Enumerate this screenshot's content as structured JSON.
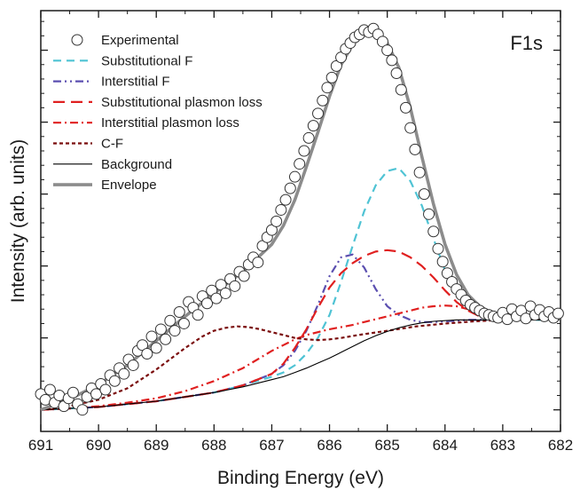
{
  "chart_data": {
    "type": "line",
    "title": "",
    "panel_label": "F1s",
    "xlabel": "Binding Energy (eV)",
    "ylabel": "Intensity (arb. units)",
    "xlim": [
      691,
      682
    ],
    "x_reversed": true,
    "ylim": [
      -0.3,
      5.55
    ],
    "y_tick_labels_shown": false,
    "x_ticks": [
      691,
      690,
      689,
      688,
      687,
      686,
      685,
      684,
      683,
      682
    ],
    "x_tick_labels": [
      "691",
      "690",
      "689",
      "688",
      "687",
      "686",
      "685",
      "684",
      "683",
      "682"
    ],
    "y_ticks": [
      0,
      1,
      2,
      3,
      4,
      5
    ],
    "grid": false,
    "legend_position": "top-left",
    "colors": {
      "experimental": "#333333",
      "substitutional_f": "#4fc3d4",
      "interstitial_f": "#5b4fb0",
      "substitutional_plasmon": "#e02020",
      "interstitial_plasmon": "#e02020",
      "c_f": "#7a0c0c",
      "background": "#000000",
      "envelope": "#8c8c8c"
    },
    "series": [
      {
        "name": "Experimental",
        "style": "open-circles",
        "x": [
          691.0,
          690.92,
          690.84,
          690.76,
          690.68,
          690.6,
          690.52,
          690.44,
          690.36,
          690.28,
          690.2,
          690.12,
          690.04,
          689.96,
          689.88,
          689.8,
          689.72,
          689.64,
          689.56,
          689.48,
          689.4,
          689.32,
          689.24,
          689.16,
          689.08,
          689.0,
          688.92,
          688.84,
          688.76,
          688.68,
          688.6,
          688.52,
          688.44,
          688.36,
          688.28,
          688.2,
          688.12,
          688.04,
          687.96,
          687.88,
          687.8,
          687.72,
          687.64,
          687.56,
          687.48,
          687.4,
          687.32,
          687.24,
          687.16,
          687.08,
          687.0,
          686.92,
          686.84,
          686.76,
          686.68,
          686.6,
          686.52,
          686.44,
          686.36,
          686.28,
          686.2,
          686.12,
          686.04,
          685.96,
          685.88,
          685.8,
          685.72,
          685.64,
          685.56,
          685.48,
          685.4,
          685.32,
          685.24,
          685.16,
          685.08,
          685.0,
          684.92,
          684.84,
          684.76,
          684.68,
          684.6,
          684.52,
          684.44,
          684.36,
          684.28,
          684.2,
          684.12,
          684.04,
          683.96,
          683.88,
          683.8,
          683.72,
          683.64,
          683.56,
          683.48,
          683.4,
          683.32,
          683.24,
          683.16,
          683.08,
          683.0,
          682.92,
          682.84,
          682.76,
          682.68,
          682.6,
          682.52,
          682.44,
          682.36,
          682.28,
          682.2,
          682.12,
          682.04
        ],
        "y": [
          0.22,
          0.14,
          0.28,
          0.1,
          0.2,
          0.05,
          0.16,
          0.24,
          0.08,
          0.0,
          0.18,
          0.3,
          0.22,
          0.36,
          0.28,
          0.48,
          0.4,
          0.58,
          0.5,
          0.7,
          0.62,
          0.82,
          0.9,
          0.78,
          1.02,
          0.86,
          1.12,
          0.98,
          1.24,
          1.1,
          1.36,
          1.2,
          1.5,
          1.42,
          1.32,
          1.58,
          1.48,
          1.66,
          1.55,
          1.74,
          1.62,
          1.82,
          1.72,
          1.92,
          1.86,
          2.02,
          2.12,
          2.05,
          2.28,
          2.4,
          2.5,
          2.62,
          2.78,
          2.92,
          3.08,
          3.24,
          3.42,
          3.6,
          3.78,
          3.95,
          4.12,
          4.3,
          4.48,
          4.62,
          4.78,
          4.9,
          5.02,
          5.1,
          5.18,
          5.22,
          5.28,
          5.25,
          5.3,
          5.22,
          5.12,
          5.0,
          4.86,
          4.68,
          4.45,
          4.2,
          3.92,
          3.62,
          3.3,
          3.0,
          2.72,
          2.48,
          2.24,
          2.06,
          1.9,
          1.78,
          1.68,
          1.6,
          1.52,
          1.46,
          1.42,
          1.38,
          1.34,
          1.32,
          1.3,
          1.28,
          1.35,
          1.26,
          1.4,
          1.3,
          1.38,
          1.27,
          1.44,
          1.32,
          1.39,
          1.3,
          1.36,
          1.28,
          1.34
        ]
      },
      {
        "name": "Substitutional F",
        "style": "dash",
        "x": [
          691.0,
          690.5,
          690.0,
          689.5,
          689.0,
          688.5,
          688.0,
          687.5,
          687.0,
          686.8,
          686.6,
          686.4,
          686.2,
          686.0,
          685.8,
          685.6,
          685.4,
          685.2,
          685.0,
          684.8,
          684.6,
          684.4,
          684.2,
          684.0,
          683.8,
          683.6,
          683.4,
          683.2,
          683.0,
          682.5,
          682.0
        ],
        "y": [
          0.0,
          0.02,
          0.04,
          0.08,
          0.12,
          0.18,
          0.24,
          0.34,
          0.46,
          0.52,
          0.62,
          0.78,
          1.0,
          1.32,
          1.78,
          2.28,
          2.76,
          3.12,
          3.32,
          3.36,
          3.18,
          2.84,
          2.38,
          1.94,
          1.6,
          1.4,
          1.3,
          1.26,
          1.25,
          1.25,
          1.25
        ]
      },
      {
        "name": "Interstitial F",
        "style": "dash-dot-dot",
        "x": [
          691.0,
          690.5,
          690.0,
          689.5,
          689.0,
          688.5,
          688.0,
          687.5,
          687.0,
          686.8,
          686.6,
          686.4,
          686.2,
          686.0,
          685.8,
          685.6,
          685.4,
          685.2,
          685.0,
          684.8,
          684.6,
          684.4,
          684.2,
          684.0,
          683.8,
          683.6,
          683.4,
          683.2,
          683.0
        ],
        "y": [
          0.0,
          0.02,
          0.04,
          0.08,
          0.12,
          0.18,
          0.24,
          0.34,
          0.5,
          0.62,
          0.82,
          1.1,
          1.46,
          1.86,
          2.12,
          2.16,
          1.98,
          1.68,
          1.44,
          1.32,
          1.25,
          1.22,
          1.22,
          1.23,
          1.24,
          1.25,
          1.25,
          1.25,
          1.25
        ]
      },
      {
        "name": "Substitutional plasmon loss",
        "style": "long-dash",
        "x": [
          691.0,
          690.5,
          690.0,
          689.5,
          689.0,
          688.5,
          688.0,
          687.5,
          687.0,
          686.8,
          686.6,
          686.4,
          686.2,
          686.0,
          685.8,
          685.6,
          685.4,
          685.2,
          685.0,
          684.8,
          684.6,
          684.4,
          684.2,
          684.0,
          683.8,
          683.6,
          683.4,
          683.2,
          683.0
        ],
        "y": [
          0.0,
          0.02,
          0.04,
          0.08,
          0.12,
          0.18,
          0.24,
          0.34,
          0.5,
          0.64,
          0.86,
          1.12,
          1.42,
          1.7,
          1.9,
          2.04,
          2.14,
          2.2,
          2.22,
          2.2,
          2.12,
          2.0,
          1.84,
          1.66,
          1.5,
          1.38,
          1.3,
          1.26,
          1.25
        ]
      },
      {
        "name": "Interstitial plasmon loss",
        "style": "dash-dot",
        "x": [
          691.0,
          690.5,
          690.0,
          689.5,
          689.0,
          688.5,
          688.0,
          687.5,
          687.0,
          686.8,
          686.6,
          686.4,
          686.2,
          686.0,
          685.8,
          685.6,
          685.4,
          685.2,
          685.0,
          684.8,
          684.6,
          684.4,
          684.2,
          684.0,
          683.8,
          683.6,
          683.4,
          683.2,
          683.0
        ],
        "y": [
          0.0,
          0.02,
          0.05,
          0.1,
          0.16,
          0.26,
          0.4,
          0.58,
          0.82,
          0.9,
          0.98,
          1.04,
          1.08,
          1.12,
          1.15,
          1.18,
          1.22,
          1.26,
          1.3,
          1.34,
          1.38,
          1.42,
          1.44,
          1.45,
          1.44,
          1.4,
          1.34,
          1.28,
          1.25
        ]
      },
      {
        "name": "C-F",
        "style": "short-dash",
        "x": [
          691.0,
          690.5,
          690.0,
          689.5,
          689.0,
          688.5,
          688.2,
          688.0,
          687.8,
          687.6,
          687.4,
          687.2,
          687.0,
          686.8,
          686.6,
          686.4,
          686.2,
          686.0,
          685.8,
          685.5,
          685.0,
          684.5,
          684.0,
          683.5,
          683.0
        ],
        "y": [
          0.0,
          0.05,
          0.14,
          0.3,
          0.56,
          0.86,
          1.02,
          1.1,
          1.14,
          1.16,
          1.15,
          1.12,
          1.08,
          1.04,
          1.0,
          0.98,
          0.97,
          0.98,
          1.0,
          1.04,
          1.1,
          1.16,
          1.2,
          1.23,
          1.25
        ]
      },
      {
        "name": "Background",
        "style": "solid-thin",
        "x": [
          691.0,
          690.5,
          690.0,
          689.5,
          689.0,
          688.5,
          688.0,
          687.5,
          687.0,
          686.8,
          686.6,
          686.4,
          686.2,
          686.0,
          685.8,
          685.6,
          685.4,
          685.2,
          685.0,
          684.8,
          684.6,
          684.4,
          684.2,
          684.0,
          683.8,
          683.6,
          683.4,
          683.2,
          683.0,
          682.5,
          682.0
        ],
        "y": [
          0.0,
          0.02,
          0.04,
          0.08,
          0.12,
          0.18,
          0.24,
          0.32,
          0.42,
          0.46,
          0.52,
          0.58,
          0.65,
          0.72,
          0.8,
          0.88,
          0.96,
          1.03,
          1.09,
          1.14,
          1.18,
          1.21,
          1.23,
          1.24,
          1.25,
          1.25,
          1.25,
          1.25,
          1.25,
          1.25,
          1.25
        ]
      },
      {
        "name": "Envelope",
        "style": "solid-thick",
        "x": [
          691.0,
          690.5,
          690.0,
          689.5,
          689.0,
          688.5,
          688.0,
          687.5,
          687.0,
          686.8,
          686.6,
          686.4,
          686.2,
          686.0,
          685.8,
          685.6,
          685.4,
          685.2,
          685.0,
          684.8,
          684.6,
          684.4,
          684.2,
          684.0,
          683.8,
          683.6,
          683.4,
          683.2,
          683.0,
          682.5,
          682.0
        ],
        "y": [
          0.0,
          0.15,
          0.35,
          0.62,
          0.96,
          1.3,
          1.62,
          1.92,
          2.3,
          2.56,
          2.92,
          3.38,
          3.86,
          4.36,
          4.8,
          5.08,
          5.24,
          5.26,
          5.1,
          4.76,
          4.2,
          3.52,
          2.86,
          2.3,
          1.88,
          1.6,
          1.44,
          1.35,
          1.31,
          1.28,
          1.27
        ]
      }
    ]
  }
}
